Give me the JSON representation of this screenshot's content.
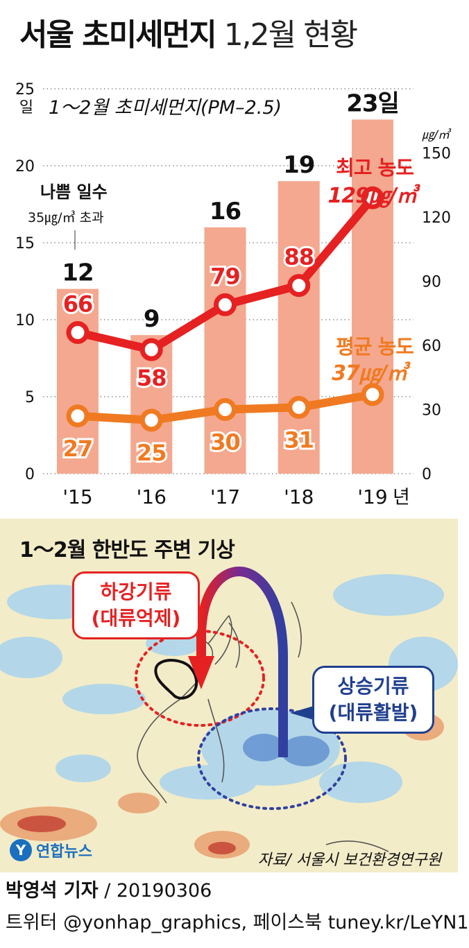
{
  "title_bold": "서울 초미세먼지",
  "title_light": "1,2월 현황",
  "chart_data": {
    "type": "bar+line",
    "subtitle": "1～2월 초미세먼지(PM–2.5)",
    "categories": [
      "'15",
      "'16",
      "'17",
      "'18",
      "'19"
    ],
    "x_unit": "년",
    "left_axis": {
      "unit": "일",
      "ylim": [
        0,
        25
      ],
      "ticks": [
        "0",
        "5",
        "10",
        "15",
        "20",
        "25"
      ]
    },
    "right_axis": {
      "unit": "㎍/㎥",
      "ylim": [
        0,
        180
      ],
      "ticks": [
        "0",
        "30",
        "60",
        "90",
        "120",
        "150"
      ]
    },
    "bar_series": {
      "name": "나쁨 일수",
      "name_sub": "35㎍/㎥ 초과",
      "values": [
        12,
        9,
        16,
        19,
        23
      ],
      "labels": [
        "12",
        "9",
        "16",
        "19",
        "23일"
      ]
    },
    "line_series": [
      {
        "name": "최고 농도",
        "values": [
          66,
          58,
          79,
          88,
          129
        ],
        "annotation_value": "129㎍/㎥",
        "color": "#e52122"
      },
      {
        "name": "평균 농도",
        "values": [
          27,
          25,
          30,
          31,
          37
        ],
        "annotation_value": "37㎍/㎥",
        "color": "#f07a21"
      }
    ],
    "bar_color": "#f4a88f",
    "grid": "dotted horizontal"
  },
  "map": {
    "title": "1～2월 한반도 주변 기상",
    "downdraft_line1": "하강기류",
    "downdraft_line2": "(대류억제)",
    "updraft_line1": "상승기류",
    "updraft_line2": "(대류활발)",
    "logo_mark": "Y",
    "logo_text": "연합뉴스",
    "source": "자료/ 서울시 보건환경연구원"
  },
  "footer": {
    "credit_name": "박영석 기자",
    "credit_date": "/ 20190306",
    "social": "트위터 @yonhap_graphics, 페이스북 tuney.kr/LeYN1"
  }
}
